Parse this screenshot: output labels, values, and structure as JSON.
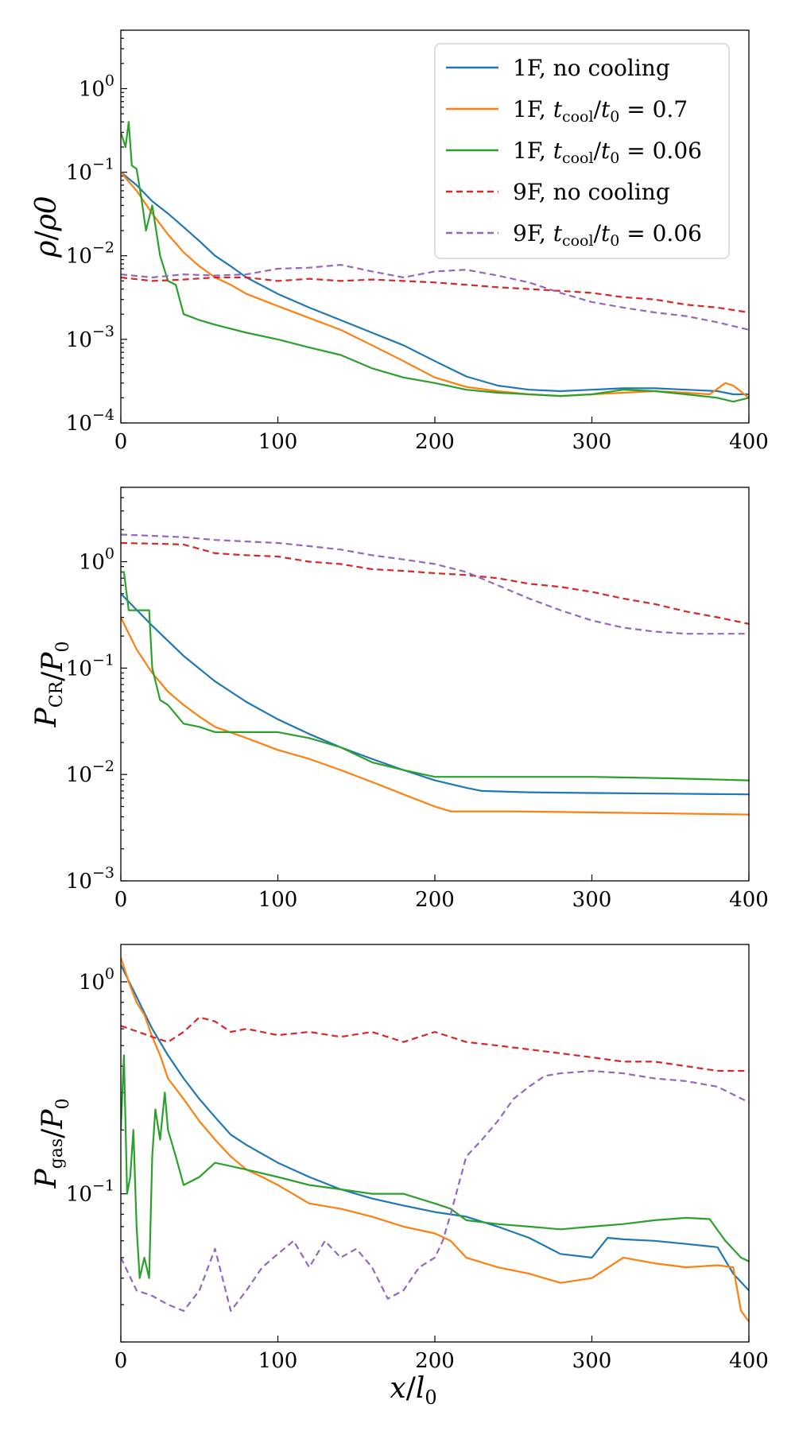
{
  "figure": {
    "xlabel_italic": "x",
    "xlabel_slash": "/",
    "xlabel_sub": "l",
    "xlabel_sub_index": "0"
  },
  "chart_data": [
    {
      "type": "line",
      "id": "density",
      "ylabel": "ρ/ρ0",
      "yscale": "log",
      "ylim": [
        0.0001,
        5
      ],
      "xlim": [
        0,
        400
      ],
      "xticks": [
        0,
        100,
        200,
        300,
        400
      ],
      "ytick_labels": [
        {
          "value": 0.0001,
          "base": "10",
          "exp": "−4"
        },
        {
          "value": 0.001,
          "base": "10",
          "exp": "−3"
        },
        {
          "value": 0.01,
          "base": "10",
          "exp": "−2"
        },
        {
          "value": 0.1,
          "base": "10",
          "exp": "−1"
        },
        {
          "value": 1,
          "base": "10",
          "exp": "0"
        }
      ],
      "legend": {
        "location": "top-right",
        "entries": [
          {
            "label": "1F, no cooling",
            "color": "#1f77b4",
            "dashed": false
          },
          {
            "label": "1F, t_cool/t_0 = 0.7",
            "color": "#ff7f0e",
            "dashed": false
          },
          {
            "label": "1F, t_cool/t_0 = 0.06",
            "color": "#2ca02c",
            "dashed": false
          },
          {
            "label": "9F, no cooling",
            "color": "#d62728",
            "dashed": true
          },
          {
            "label": "9F, t_cool/t_0 = 0.06",
            "color": "#9467bd",
            "dashed": true
          }
        ]
      },
      "series": [
        {
          "name": "1F, no cooling",
          "color": "#1f77b4",
          "dashed": false,
          "x": [
            0,
            10,
            20,
            30,
            40,
            50,
            60,
            70,
            80,
            100,
            120,
            140,
            160,
            180,
            200,
            220,
            240,
            260,
            280,
            300,
            320,
            340,
            360,
            380,
            390,
            400
          ],
          "y": [
            0.1,
            0.07,
            0.045,
            0.032,
            0.022,
            0.015,
            0.01,
            0.0075,
            0.0055,
            0.0035,
            0.0024,
            0.0017,
            0.0012,
            0.00085,
            0.00055,
            0.00036,
            0.00028,
            0.00025,
            0.00024,
            0.00025,
            0.00026,
            0.00026,
            0.00025,
            0.00024,
            0.00022,
            0.00022
          ]
        },
        {
          "name": "1F, t_cool/t_0 = 0.7",
          "color": "#ff7f0e",
          "dashed": false,
          "x": [
            0,
            10,
            20,
            30,
            40,
            50,
            60,
            70,
            80,
            100,
            120,
            140,
            160,
            180,
            200,
            220,
            240,
            260,
            280,
            300,
            320,
            340,
            360,
            375,
            385,
            390,
            400
          ],
          "y": [
            0.1,
            0.06,
            0.032,
            0.018,
            0.011,
            0.0075,
            0.0055,
            0.0045,
            0.0035,
            0.0025,
            0.0018,
            0.0013,
            0.00085,
            0.00055,
            0.00035,
            0.00027,
            0.00024,
            0.00022,
            0.00021,
            0.00022,
            0.00023,
            0.00024,
            0.00023,
            0.00022,
            0.0003,
            0.00028,
            0.0002
          ]
        },
        {
          "name": "1F, t_cool/t_0 = 0.06",
          "color": "#2ca02c",
          "dashed": false,
          "x": [
            0,
            3,
            5,
            7,
            10,
            13,
            16,
            20,
            25,
            30,
            35,
            40,
            50,
            60,
            80,
            100,
            120,
            140,
            160,
            180,
            200,
            220,
            240,
            260,
            280,
            300,
            320,
            340,
            360,
            380,
            390,
            400
          ],
          "y": [
            0.3,
            0.2,
            0.4,
            0.12,
            0.11,
            0.05,
            0.02,
            0.04,
            0.01,
            0.005,
            0.0045,
            0.002,
            0.0017,
            0.0015,
            0.0012,
            0.001,
            0.0008,
            0.00065,
            0.00045,
            0.00035,
            0.0003,
            0.00025,
            0.00023,
            0.00022,
            0.00021,
            0.00022,
            0.00025,
            0.00024,
            0.00022,
            0.0002,
            0.00018,
            0.0002
          ]
        },
        {
          "name": "9F, no cooling",
          "color": "#d62728",
          "dashed": true,
          "x": [
            0,
            20,
            40,
            60,
            80,
            100,
            120,
            140,
            160,
            180,
            200,
            220,
            240,
            260,
            280,
            300,
            320,
            340,
            360,
            380,
            400
          ],
          "y": [
            0.0055,
            0.005,
            0.0052,
            0.0055,
            0.0055,
            0.005,
            0.0053,
            0.005,
            0.0052,
            0.005,
            0.0048,
            0.0045,
            0.0042,
            0.004,
            0.0038,
            0.0036,
            0.0032,
            0.003,
            0.0026,
            0.0024,
            0.0021
          ]
        },
        {
          "name": "9F, t_cool/t_0 = 0.06",
          "color": "#9467bd",
          "dashed": true,
          "x": [
            0,
            20,
            40,
            60,
            80,
            100,
            120,
            140,
            160,
            180,
            200,
            220,
            240,
            260,
            280,
            300,
            320,
            340,
            360,
            380,
            400
          ],
          "y": [
            0.006,
            0.0055,
            0.006,
            0.0058,
            0.006,
            0.007,
            0.0072,
            0.0078,
            0.0065,
            0.0055,
            0.0065,
            0.0068,
            0.0058,
            0.0048,
            0.0036,
            0.0028,
            0.0024,
            0.0021,
            0.0019,
            0.0016,
            0.0013
          ]
        }
      ]
    },
    {
      "type": "line",
      "id": "cr-pressure",
      "ylabel": "P_CR/P_0",
      "yscale": "log",
      "ylim": [
        0.001,
        5
      ],
      "xlim": [
        0,
        400
      ],
      "xticks": [
        0,
        100,
        200,
        300,
        400
      ],
      "ytick_labels": [
        {
          "value": 0.001,
          "base": "10",
          "exp": "−3"
        },
        {
          "value": 0.01,
          "base": "10",
          "exp": "−2"
        },
        {
          "value": 0.1,
          "base": "10",
          "exp": "−1"
        },
        {
          "value": 1,
          "base": "10",
          "exp": "0"
        }
      ],
      "series": [
        {
          "name": "1F, no cooling",
          "color": "#1f77b4",
          "dashed": false,
          "x": [
            0,
            20,
            40,
            60,
            80,
            100,
            120,
            140,
            160,
            180,
            200,
            220,
            230,
            260,
            300,
            350,
            400
          ],
          "y": [
            0.5,
            0.25,
            0.13,
            0.075,
            0.048,
            0.033,
            0.024,
            0.018,
            0.014,
            0.011,
            0.0088,
            0.0075,
            0.007,
            0.0068,
            0.0067,
            0.0066,
            0.0065
          ]
        },
        {
          "name": "1F, t_cool/t_0 = 0.7",
          "color": "#ff7f0e",
          "dashed": false,
          "x": [
            0,
            10,
            20,
            30,
            40,
            50,
            60,
            80,
            100,
            120,
            140,
            160,
            180,
            200,
            210,
            250,
            300,
            350,
            400
          ],
          "y": [
            0.3,
            0.15,
            0.09,
            0.06,
            0.045,
            0.035,
            0.028,
            0.022,
            0.017,
            0.014,
            0.011,
            0.0085,
            0.0065,
            0.005,
            0.0045,
            0.0045,
            0.0044,
            0.0043,
            0.0042
          ]
        },
        {
          "name": "1F, t_cool/t_0 = 0.06",
          "color": "#2ca02c",
          "dashed": false,
          "x": [
            0,
            2,
            5,
            10,
            18,
            20,
            25,
            30,
            40,
            50,
            60,
            80,
            100,
            120,
            140,
            160,
            180,
            200,
            220,
            260,
            300,
            350,
            400
          ],
          "y": [
            0.8,
            0.8,
            0.35,
            0.35,
            0.35,
            0.1,
            0.05,
            0.045,
            0.03,
            0.028,
            0.025,
            0.025,
            0.025,
            0.022,
            0.018,
            0.013,
            0.011,
            0.0095,
            0.0095,
            0.0095,
            0.0095,
            0.0092,
            0.0088
          ]
        },
        {
          "name": "9F, no cooling",
          "color": "#d62728",
          "dashed": true,
          "x": [
            0,
            20,
            40,
            60,
            80,
            100,
            120,
            140,
            160,
            180,
            200,
            220,
            240,
            260,
            280,
            300,
            320,
            340,
            360,
            380,
            400
          ],
          "y": [
            1.5,
            1.48,
            1.45,
            1.2,
            1.15,
            1.12,
            1.0,
            0.95,
            0.85,
            0.82,
            0.78,
            0.75,
            0.7,
            0.62,
            0.58,
            0.52,
            0.45,
            0.4,
            0.34,
            0.3,
            0.26
          ]
        },
        {
          "name": "9F, t_cool/t_0 = 0.06",
          "color": "#9467bd",
          "dashed": true,
          "x": [
            0,
            20,
            40,
            60,
            80,
            100,
            120,
            140,
            160,
            180,
            200,
            220,
            240,
            260,
            280,
            300,
            320,
            340,
            360,
            380,
            400
          ],
          "y": [
            1.8,
            1.75,
            1.7,
            1.6,
            1.55,
            1.5,
            1.4,
            1.3,
            1.15,
            1.05,
            0.95,
            0.8,
            0.6,
            0.45,
            0.35,
            0.28,
            0.24,
            0.22,
            0.21,
            0.21,
            0.21
          ]
        }
      ]
    },
    {
      "type": "line",
      "id": "gas-pressure",
      "ylabel": "P_gas/P_0",
      "yscale": "log",
      "ylim": [
        0.02,
        1.5
      ],
      "xlim": [
        0,
        400
      ],
      "xticks": [
        0,
        100,
        200,
        300,
        400
      ],
      "ytick_labels": [
        {
          "value": 0.1,
          "base": "10",
          "exp": "−1"
        },
        {
          "value": 1,
          "base": "10",
          "exp": "0"
        }
      ],
      "series": [
        {
          "name": "1F, no cooling",
          "color": "#1f77b4",
          "dashed": false,
          "x": [
            0,
            10,
            20,
            30,
            40,
            50,
            60,
            70,
            80,
            100,
            120,
            140,
            160,
            180,
            200,
            210,
            220,
            240,
            260,
            280,
            300,
            310,
            320,
            340,
            360,
            380,
            390,
            400
          ],
          "y": [
            1.2,
            0.85,
            0.6,
            0.45,
            0.35,
            0.28,
            0.23,
            0.19,
            0.17,
            0.14,
            0.12,
            0.105,
            0.095,
            0.088,
            0.082,
            0.08,
            0.078,
            0.07,
            0.062,
            0.052,
            0.05,
            0.062,
            0.061,
            0.06,
            0.058,
            0.056,
            0.042,
            0.035
          ]
        },
        {
          "name": "1F, t_cool/t_0 = 0.7",
          "color": "#ff7f0e",
          "dashed": false,
          "x": [
            0,
            5,
            10,
            15,
            20,
            25,
            30,
            40,
            50,
            60,
            70,
            80,
            90,
            100,
            120,
            140,
            160,
            180,
            200,
            210,
            220,
            240,
            260,
            280,
            300,
            320,
            340,
            360,
            380,
            390,
            395,
            400
          ],
          "y": [
            1.3,
            1.0,
            0.8,
            0.7,
            0.55,
            0.45,
            0.35,
            0.28,
            0.22,
            0.18,
            0.15,
            0.13,
            0.12,
            0.11,
            0.09,
            0.085,
            0.078,
            0.07,
            0.065,
            0.06,
            0.05,
            0.045,
            0.042,
            0.038,
            0.04,
            0.05,
            0.047,
            0.045,
            0.046,
            0.045,
            0.028,
            0.025
          ]
        },
        {
          "name": "1F, t_cool/t_0 = 0.06",
          "color": "#2ca02c",
          "dashed": false,
          "x": [
            0,
            2,
            4,
            6,
            8,
            10,
            12,
            15,
            18,
            20,
            22,
            25,
            28,
            30,
            35,
            40,
            50,
            60,
            80,
            100,
            120,
            140,
            160,
            180,
            200,
            210,
            220,
            240,
            260,
            280,
            300,
            320,
            340,
            360,
            375,
            385,
            395,
            400
          ],
          "y": [
            0.2,
            0.45,
            0.1,
            0.12,
            0.2,
            0.07,
            0.04,
            0.05,
            0.04,
            0.15,
            0.25,
            0.18,
            0.3,
            0.2,
            0.15,
            0.11,
            0.12,
            0.14,
            0.13,
            0.12,
            0.11,
            0.105,
            0.1,
            0.1,
            0.09,
            0.085,
            0.075,
            0.072,
            0.07,
            0.068,
            0.07,
            0.072,
            0.075,
            0.077,
            0.076,
            0.06,
            0.05,
            0.048
          ]
        },
        {
          "name": "9F, no cooling",
          "color": "#d62728",
          "dashed": true,
          "x": [
            0,
            20,
            30,
            40,
            50,
            60,
            70,
            80,
            100,
            120,
            140,
            160,
            180,
            200,
            220,
            240,
            260,
            280,
            300,
            320,
            340,
            360,
            380,
            400
          ],
          "y": [
            0.62,
            0.55,
            0.52,
            0.58,
            0.68,
            0.65,
            0.58,
            0.6,
            0.56,
            0.58,
            0.55,
            0.58,
            0.52,
            0.58,
            0.52,
            0.5,
            0.48,
            0.46,
            0.44,
            0.42,
            0.42,
            0.4,
            0.38,
            0.38
          ]
        },
        {
          "name": "9F, t_cool/t_0 = 0.06",
          "color": "#9467bd",
          "dashed": true,
          "x": [
            0,
            10,
            20,
            30,
            40,
            50,
            60,
            70,
            80,
            90,
            100,
            110,
            120,
            130,
            140,
            150,
            160,
            170,
            180,
            190,
            200,
            205,
            210,
            220,
            230,
            240,
            250,
            260,
            270,
            280,
            300,
            320,
            340,
            360,
            380,
            400
          ],
          "y": [
            0.05,
            0.035,
            0.033,
            0.03,
            0.028,
            0.035,
            0.055,
            0.028,
            0.035,
            0.045,
            0.052,
            0.06,
            0.045,
            0.06,
            0.05,
            0.055,
            0.045,
            0.032,
            0.035,
            0.045,
            0.05,
            0.06,
            0.08,
            0.15,
            0.18,
            0.22,
            0.28,
            0.32,
            0.36,
            0.37,
            0.38,
            0.37,
            0.35,
            0.34,
            0.32,
            0.27
          ]
        }
      ]
    }
  ]
}
